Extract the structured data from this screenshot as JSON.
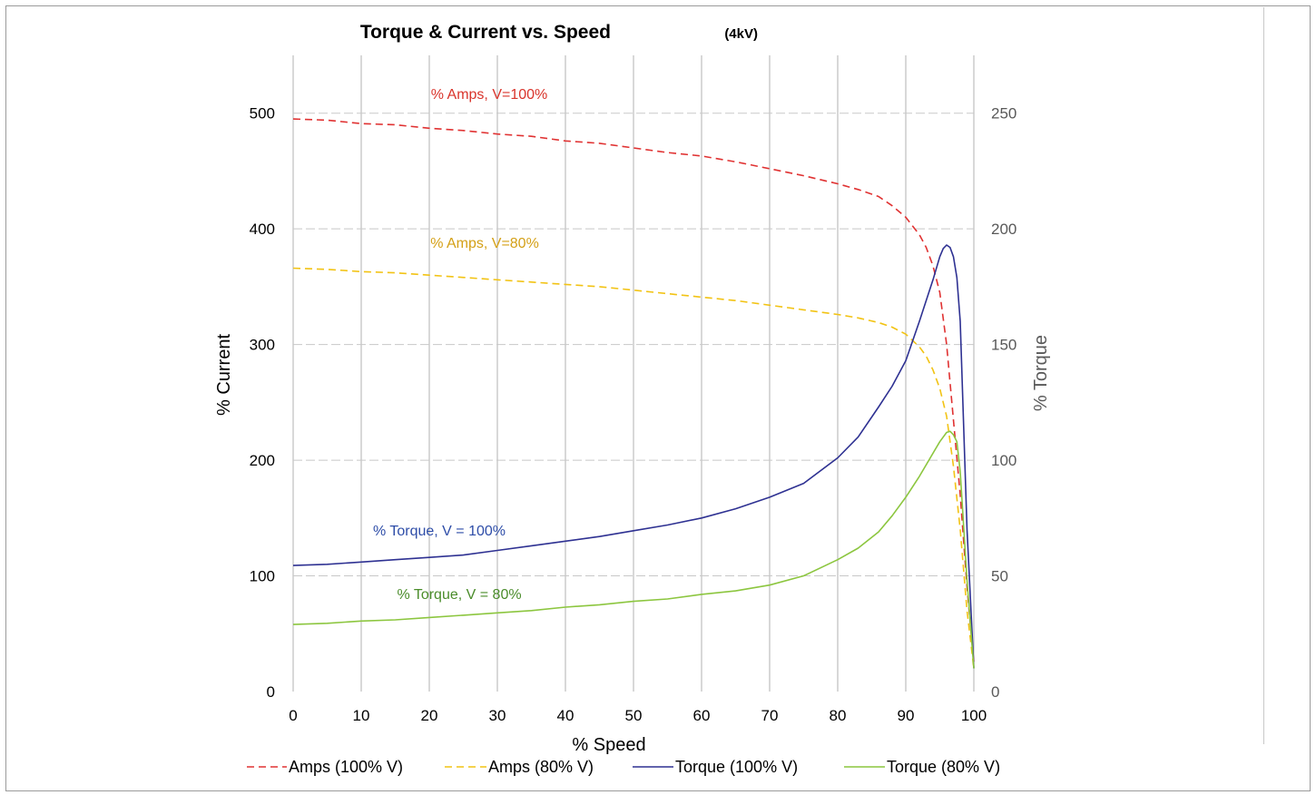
{
  "chart_data": {
    "type": "line",
    "title": "Torque & Current vs. Speed",
    "title_suffix": "(4kV)",
    "xlabel": "% Speed",
    "ylabel": "% Current",
    "y2label": "% Torque",
    "xlim": [
      0,
      100
    ],
    "ylim": [
      0,
      550
    ],
    "y2lim": [
      0,
      275
    ],
    "x_ticks": [
      "0",
      "10",
      "20",
      "30",
      "40",
      "50",
      "60",
      "70",
      "80",
      "90",
      "100"
    ],
    "y_ticks": [
      "0",
      "100",
      "200",
      "300",
      "400",
      "500"
    ],
    "y2_ticks": [
      "0",
      "50",
      "100",
      "150",
      "200",
      "250"
    ],
    "grid": true,
    "legend_position": "bottom",
    "series": [
      {
        "name": "Amps (100% V)",
        "axis": "left",
        "color": "#e03232",
        "dash": true,
        "x": [
          0,
          5,
          10,
          15,
          20,
          25,
          30,
          35,
          40,
          45,
          50,
          55,
          60,
          65,
          70,
          75,
          80,
          83,
          86,
          88,
          90,
          92,
          93,
          94,
          95,
          96,
          97,
          98,
          99,
          100
        ],
        "y": [
          495,
          494,
          491,
          490,
          487,
          485,
          482,
          480,
          476,
          474,
          470,
          466,
          463,
          458,
          452,
          446,
          439,
          434,
          428,
          420,
          410,
          395,
          384,
          368,
          345,
          300,
          235,
          170,
          90,
          25
        ]
      },
      {
        "name": "Amps (80% V)",
        "axis": "left",
        "color": "#f2c314",
        "dash": true,
        "x": [
          0,
          5,
          10,
          15,
          20,
          25,
          30,
          35,
          40,
          45,
          50,
          55,
          60,
          65,
          70,
          75,
          80,
          83,
          86,
          88,
          90,
          92,
          93,
          94,
          95,
          96,
          97,
          98,
          99,
          100
        ],
        "y": [
          366,
          365,
          363,
          362,
          360,
          358,
          356,
          354,
          352,
          350,
          347,
          344,
          341,
          338,
          334,
          330,
          326,
          323,
          319,
          315,
          309,
          298,
          290,
          278,
          262,
          238,
          195,
          140,
          70,
          20
        ]
      },
      {
        "name": "Torque (100% V)",
        "axis": "right",
        "color": "#2e3192",
        "dash": false,
        "x": [
          0,
          5,
          10,
          15,
          20,
          25,
          30,
          35,
          40,
          45,
          50,
          55,
          60,
          65,
          70,
          75,
          80,
          83,
          86,
          88,
          90,
          92,
          94,
          95,
          95.5,
          96,
          96.5,
          97,
          97.5,
          98,
          99,
          100
        ],
        "y": [
          54.5,
          55,
          56,
          57,
          58,
          59,
          61,
          63,
          65,
          67,
          69.5,
          72,
          75,
          79,
          84,
          90,
          101,
          110,
          123,
          132,
          143,
          160,
          178,
          188,
          191.5,
          193,
          192,
          188,
          179,
          160,
          70,
          10
        ]
      },
      {
        "name": "Torque (80% V)",
        "axis": "right",
        "color": "#8cc63f",
        "dash": false,
        "x": [
          0,
          5,
          10,
          15,
          20,
          25,
          30,
          35,
          40,
          45,
          50,
          55,
          60,
          65,
          70,
          75,
          80,
          83,
          86,
          88,
          90,
          92,
          94,
          95,
          96,
          96.5,
          97,
          97.5,
          98,
          99,
          100
        ],
        "y": [
          29,
          29.5,
          30.5,
          31,
          32,
          33,
          34,
          35,
          36.5,
          37.5,
          39,
          40,
          42,
          43.5,
          46,
          50,
          57,
          62,
          69,
          76,
          84,
          93,
          103,
          108,
          112,
          112.5,
          111,
          108,
          95,
          48,
          10
        ]
      }
    ],
    "annotations": [
      {
        "text": "% Amps, V=100%",
        "color": "#d9342b"
      },
      {
        "text": "% Amps, V=80%",
        "color": "#d4a017"
      },
      {
        "text": "% Torque, V = 100%",
        "color": "#2e4da8"
      },
      {
        "text": "% Torque, V = 80%",
        "color": "#4a8c2a"
      }
    ]
  }
}
